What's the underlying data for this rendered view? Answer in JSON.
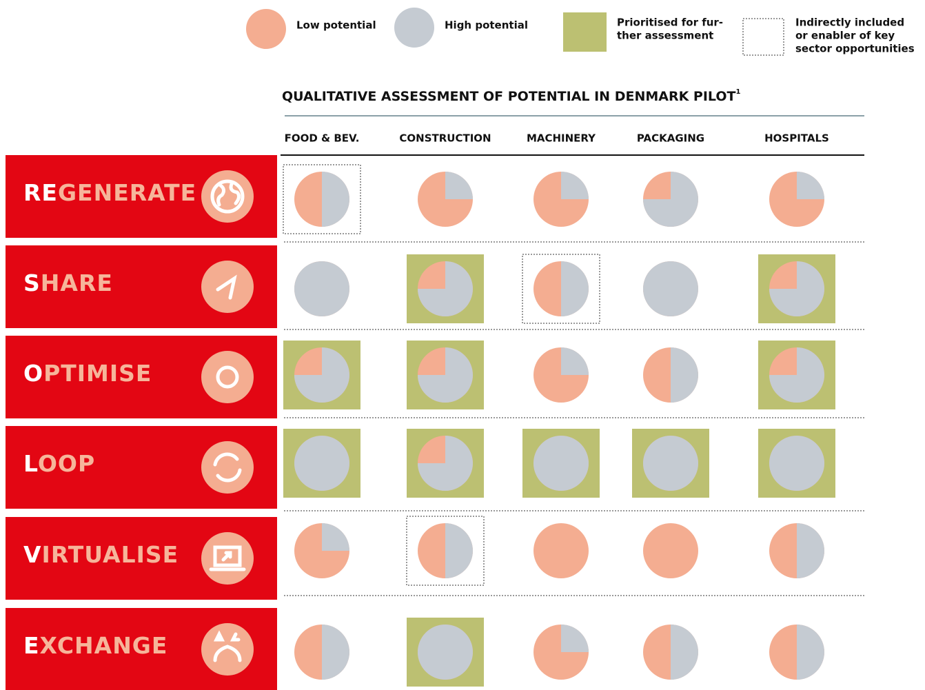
{
  "legend": {
    "low": "Low potential",
    "high": "High potential",
    "prioritised": [
      "Prioritised for fur-",
      "ther assessment"
    ],
    "indirect": [
      "Indirectly included",
      "or enabler of key",
      "sector opportunities"
    ]
  },
  "title": {
    "text": "QUALITATIVE ASSESSMENT OF POTENTIAL IN DENMARK PILOT",
    "footnote": "1"
  },
  "columns": [
    "FOOD & BEV.",
    "CONSTRUCTION",
    "MACHINERY",
    "PACKAGING",
    "HOSPITALS"
  ],
  "colors": {
    "low": "#f4ad91",
    "high": "#c5cbd2",
    "prioritised": "#bcc072",
    "row": "#e30613"
  },
  "rows": [
    {
      "initial": "RE",
      "rest": "GENERATE",
      "cells": [
        {
          "high": 0.5,
          "status": "indirect"
        },
        {
          "high": 0.25,
          "status": null
        },
        {
          "high": 0.25,
          "status": null
        },
        {
          "high": 0.75,
          "status": null
        },
        {
          "high": 0.25,
          "status": null
        }
      ]
    },
    {
      "initial": "S",
      "rest": "HARE",
      "cells": [
        {
          "high": 1,
          "status": null
        },
        {
          "high": 0.75,
          "status": "prioritised"
        },
        {
          "high": 0.5,
          "status": "indirect"
        },
        {
          "high": 1,
          "status": null
        },
        {
          "high": 0.75,
          "status": "prioritised"
        }
      ]
    },
    {
      "initial": "O",
      "rest": "PTIMISE",
      "cells": [
        {
          "high": 0.75,
          "status": "prioritised"
        },
        {
          "high": 0.75,
          "status": "prioritised"
        },
        {
          "high": 0.25,
          "status": null
        },
        {
          "high": 0.5,
          "status": null
        },
        {
          "high": 0.75,
          "status": "prioritised"
        }
      ]
    },
    {
      "initial": "L",
      "rest": "OOP",
      "cells": [
        {
          "high": 1,
          "status": "prioritised"
        },
        {
          "high": 0.75,
          "status": "prioritised"
        },
        {
          "high": 1,
          "status": "prioritised"
        },
        {
          "high": 1,
          "status": "prioritised"
        },
        {
          "high": 1,
          "status": "prioritised"
        }
      ]
    },
    {
      "initial": "V",
      "rest": "IRTUALISE",
      "cells": [
        {
          "high": 0.25,
          "status": null
        },
        {
          "high": 0.5,
          "status": "indirect"
        },
        {
          "high": 0,
          "status": null
        },
        {
          "high": 0,
          "status": null
        },
        {
          "high": 0.5,
          "status": null
        }
      ]
    },
    {
      "initial": "E",
      "rest": "XCHANGE",
      "cells": [
        {
          "high": 0.5,
          "status": null
        },
        {
          "high": 1,
          "status": "prioritised"
        },
        {
          "high": 0.25,
          "status": null
        },
        {
          "high": 0.5,
          "status": null
        },
        {
          "high": 0.5,
          "status": null
        }
      ]
    }
  ]
}
